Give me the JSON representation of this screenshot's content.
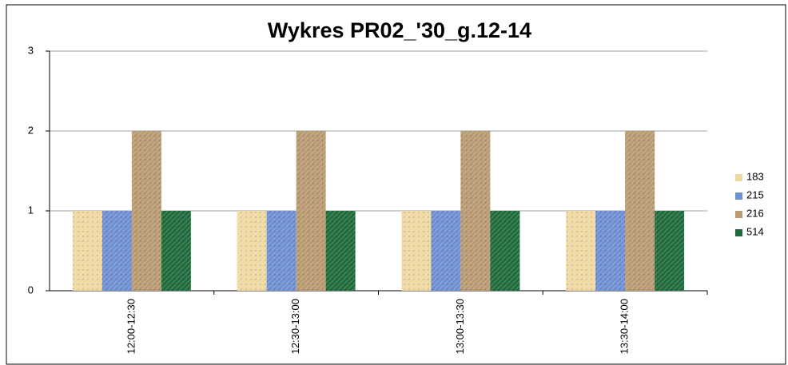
{
  "chart_data": {
    "type": "bar",
    "title": "Wykres PR02_'30_g.12-14",
    "categories": [
      "12:00-12:30",
      "12:30-13:00",
      "13:00-13:30",
      "13:30-14:00"
    ],
    "series": [
      {
        "name": "183",
        "color": "#efd8a2",
        "values": [
          1,
          1,
          1,
          1
        ]
      },
      {
        "name": "215",
        "color": "#6f8fd3",
        "values": [
          1,
          1,
          1,
          1
        ]
      },
      {
        "name": "216",
        "color": "#b99a72",
        "values": [
          2,
          2,
          2,
          2
        ]
      },
      {
        "name": "514",
        "color": "#1f6a3a",
        "values": [
          1,
          1,
          1,
          1
        ]
      }
    ],
    "ylim": [
      0,
      3
    ],
    "yticks": [
      0,
      1,
      2,
      3
    ],
    "grid": true,
    "legend": "right"
  }
}
